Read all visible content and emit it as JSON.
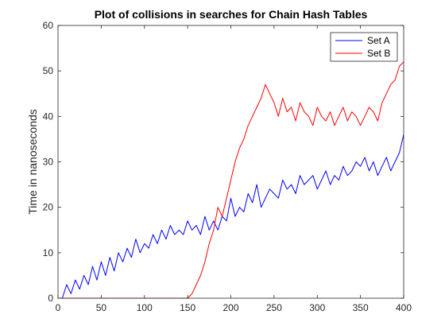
{
  "chart_data": {
    "type": "line",
    "title": "Plot of collisions in searches for Chain Hash Tables",
    "xlabel": "",
    "ylabel": "Time in nanoseconds",
    "xlim": [
      0,
      400
    ],
    "ylim": [
      0,
      60
    ],
    "xticks": [
      0,
      50,
      100,
      150,
      200,
      250,
      300,
      350,
      400
    ],
    "yticks": [
      0,
      10,
      20,
      30,
      40,
      50,
      60
    ],
    "grid": false,
    "legend_position": "top-right",
    "series": [
      {
        "name": "Set A",
        "color": "#0000ff",
        "x": [
          0,
          5,
          10,
          15,
          20,
          25,
          30,
          35,
          40,
          45,
          50,
          55,
          60,
          65,
          70,
          75,
          80,
          85,
          90,
          95,
          100,
          105,
          110,
          115,
          120,
          125,
          130,
          135,
          140,
          145,
          150,
          155,
          160,
          165,
          170,
          175,
          180,
          185,
          190,
          195,
          200,
          205,
          210,
          215,
          220,
          225,
          230,
          235,
          240,
          245,
          250,
          255,
          260,
          265,
          270,
          275,
          280,
          285,
          290,
          295,
          300,
          305,
          310,
          315,
          320,
          325,
          330,
          335,
          340,
          345,
          350,
          355,
          360,
          365,
          370,
          375,
          380,
          385,
          390,
          395,
          400
        ],
        "y": [
          0,
          0,
          3,
          1,
          4,
          2,
          5,
          3,
          7,
          4,
          8,
          5,
          9,
          6,
          10,
          8,
          11,
          9,
          13,
          10,
          12,
          11,
          14,
          12,
          15,
          13,
          16,
          14,
          15,
          14,
          17,
          15,
          16,
          14,
          18,
          15,
          17,
          15,
          18,
          17,
          22,
          18,
          20,
          19,
          23,
          21,
          25,
          20,
          22,
          24,
          23,
          22,
          26,
          24,
          25,
          23,
          27,
          25,
          26,
          27,
          24,
          26,
          28,
          25,
          27,
          26,
          29,
          27,
          28,
          30,
          29,
          31,
          28,
          30,
          27,
          29,
          31,
          28,
          30,
          32,
          36
        ]
      },
      {
        "name": "Set B",
        "color": "#ff0000",
        "x": [
          0,
          5,
          10,
          15,
          20,
          25,
          30,
          35,
          40,
          45,
          50,
          55,
          60,
          65,
          70,
          75,
          80,
          85,
          90,
          95,
          100,
          105,
          110,
          115,
          120,
          125,
          130,
          135,
          140,
          145,
          150,
          155,
          160,
          165,
          170,
          175,
          180,
          185,
          190,
          195,
          200,
          205,
          210,
          215,
          220,
          225,
          230,
          235,
          240,
          245,
          250,
          255,
          260,
          265,
          270,
          275,
          280,
          285,
          290,
          295,
          300,
          305,
          310,
          315,
          320,
          325,
          330,
          335,
          340,
          345,
          350,
          355,
          360,
          365,
          370,
          375,
          380,
          385,
          390,
          395,
          400
        ],
        "y": [
          0,
          0,
          0,
          0,
          0,
          0,
          0,
          0,
          0,
          0,
          0,
          0,
          0,
          0,
          0,
          0,
          0,
          0,
          0,
          0,
          0,
          0,
          0,
          0,
          0,
          0,
          0,
          0,
          0,
          0,
          0,
          1,
          3,
          5,
          8,
          12,
          15,
          20,
          18,
          22,
          26,
          30,
          33,
          35,
          38,
          40,
          42,
          44,
          47,
          45,
          43,
          40,
          44,
          41,
          42,
          39,
          43,
          41,
          40,
          38,
          42,
          40,
          39,
          41,
          38,
          40,
          42,
          39,
          41,
          40,
          38,
          40,
          42,
          41,
          39,
          43,
          45,
          47,
          48,
          51,
          52
        ]
      }
    ]
  }
}
